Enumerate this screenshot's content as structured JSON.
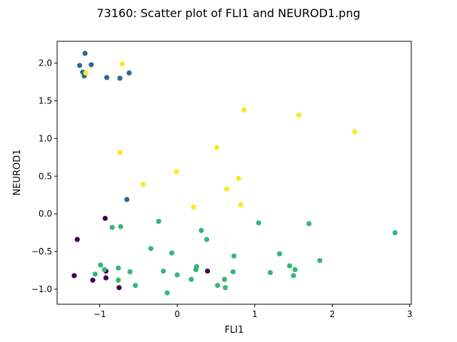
{
  "chart_data": {
    "type": "scatter",
    "title": "73160: Scatter plot of FLI1 and NEUROD1.png",
    "xlabel": "FLI1",
    "ylabel": "NEUROD1",
    "xlim": [
      -1.55,
      3.02
    ],
    "ylim": [
      -1.2,
      2.29
    ],
    "xticks": [
      -1,
      0,
      1,
      2,
      3
    ],
    "yticks": [
      -1.0,
      -0.5,
      0.0,
      0.5,
      1.0,
      1.5,
      2.0
    ],
    "xtick_labels": [
      "−1",
      "0",
      "1",
      "2",
      "3"
    ],
    "ytick_labels": [
      "−1.0",
      "−0.5",
      "0.0",
      "0.5",
      "1.0",
      "1.5",
      "2.0"
    ],
    "grid": false,
    "colors": {
      "dark_purple": "#440154",
      "blue": "#31688e",
      "green": "#35b779",
      "yellow": "#fde725"
    },
    "points": [
      {
        "x": -1.19,
        "y": 2.13,
        "c": "blue"
      },
      {
        "x": -1.26,
        "y": 1.97,
        "c": "blue"
      },
      {
        "x": -1.11,
        "y": 1.98,
        "c": "blue"
      },
      {
        "x": -1.22,
        "y": 1.88,
        "c": "blue"
      },
      {
        "x": -1.2,
        "y": 1.83,
        "c": "blue"
      },
      {
        "x": -0.91,
        "y": 1.81,
        "c": "blue"
      },
      {
        "x": -0.74,
        "y": 1.8,
        "c": "blue"
      },
      {
        "x": -0.62,
        "y": 1.87,
        "c": "blue"
      },
      {
        "x": -0.65,
        "y": 0.19,
        "c": "blue"
      },
      {
        "x": -1.18,
        "y": 1.87,
        "c": "yellow"
      },
      {
        "x": -0.71,
        "y": 1.99,
        "c": "yellow"
      },
      {
        "x": 0.86,
        "y": 1.38,
        "c": "yellow"
      },
      {
        "x": 1.57,
        "y": 1.31,
        "c": "yellow"
      },
      {
        "x": 2.29,
        "y": 1.09,
        "c": "yellow"
      },
      {
        "x": 0.51,
        "y": 0.88,
        "c": "yellow"
      },
      {
        "x": -0.74,
        "y": 0.81,
        "c": "yellow"
      },
      {
        "x": -0.01,
        "y": 0.56,
        "c": "yellow"
      },
      {
        "x": 0.79,
        "y": 0.47,
        "c": "yellow"
      },
      {
        "x": -0.44,
        "y": 0.39,
        "c": "yellow"
      },
      {
        "x": 0.64,
        "y": 0.33,
        "c": "yellow"
      },
      {
        "x": 0.21,
        "y": 0.09,
        "c": "yellow"
      },
      {
        "x": 0.82,
        "y": 0.12,
        "c": "yellow"
      },
      {
        "x": -0.93,
        "y": -0.06,
        "c": "dark_purple"
      },
      {
        "x": -1.29,
        "y": -0.34,
        "c": "dark_purple"
      },
      {
        "x": -0.92,
        "y": -0.76,
        "c": "dark_purple"
      },
      {
        "x": -0.92,
        "y": -0.85,
        "c": "dark_purple"
      },
      {
        "x": -1.33,
        "y": -0.82,
        "c": "dark_purple"
      },
      {
        "x": -1.09,
        "y": -0.88,
        "c": "dark_purple"
      },
      {
        "x": -0.75,
        "y": -0.98,
        "c": "dark_purple"
      },
      {
        "x": 0.39,
        "y": -0.76,
        "c": "dark_purple"
      },
      {
        "x": -0.84,
        "y": -0.18,
        "c": "green"
      },
      {
        "x": -0.73,
        "y": -0.17,
        "c": "green"
      },
      {
        "x": -0.24,
        "y": -0.1,
        "c": "green"
      },
      {
        "x": -0.34,
        "y": -0.46,
        "c": "green"
      },
      {
        "x": -0.07,
        "y": -0.52,
        "c": "green"
      },
      {
        "x": 0.31,
        "y": -0.22,
        "c": "green"
      },
      {
        "x": 0.38,
        "y": -0.34,
        "c": "green"
      },
      {
        "x": 1.05,
        "y": -0.12,
        "c": "green"
      },
      {
        "x": 1.7,
        "y": -0.13,
        "c": "green"
      },
      {
        "x": 2.81,
        "y": -0.25,
        "c": "green"
      },
      {
        "x": 0.73,
        "y": -0.56,
        "c": "green"
      },
      {
        "x": 1.32,
        "y": -0.53,
        "c": "green"
      },
      {
        "x": 1.84,
        "y": -0.62,
        "c": "green"
      },
      {
        "x": 1.45,
        "y": -0.69,
        "c": "green"
      },
      {
        "x": 1.52,
        "y": -0.74,
        "c": "green"
      },
      {
        "x": 1.5,
        "y": -0.82,
        "c": "green"
      },
      {
        "x": 1.2,
        "y": -0.78,
        "c": "green"
      },
      {
        "x": 0.72,
        "y": -0.77,
        "c": "green"
      },
      {
        "x": 0.61,
        "y": -0.87,
        "c": "green"
      },
      {
        "x": 0.52,
        "y": -0.95,
        "c": "green"
      },
      {
        "x": 0.62,
        "y": -0.98,
        "c": "green"
      },
      {
        "x": 0.25,
        "y": -0.7,
        "c": "green"
      },
      {
        "x": 0.24,
        "y": -0.74,
        "c": "green"
      },
      {
        "x": 0.18,
        "y": -0.87,
        "c": "green"
      },
      {
        "x": -0.18,
        "y": -0.76,
        "c": "green"
      },
      {
        "x": 0.0,
        "y": -0.81,
        "c": "green"
      },
      {
        "x": -0.13,
        "y": -1.05,
        "c": "green"
      },
      {
        "x": -0.54,
        "y": -0.95,
        "c": "green"
      },
      {
        "x": -0.61,
        "y": -0.77,
        "c": "green"
      },
      {
        "x": -0.76,
        "y": -0.72,
        "c": "green"
      },
      {
        "x": -0.76,
        "y": -0.88,
        "c": "green"
      },
      {
        "x": -0.99,
        "y": -0.68,
        "c": "green"
      },
      {
        "x": -1.06,
        "y": -0.8,
        "c": "green"
      },
      {
        "x": -0.94,
        "y": -0.74,
        "c": "green"
      }
    ]
  }
}
